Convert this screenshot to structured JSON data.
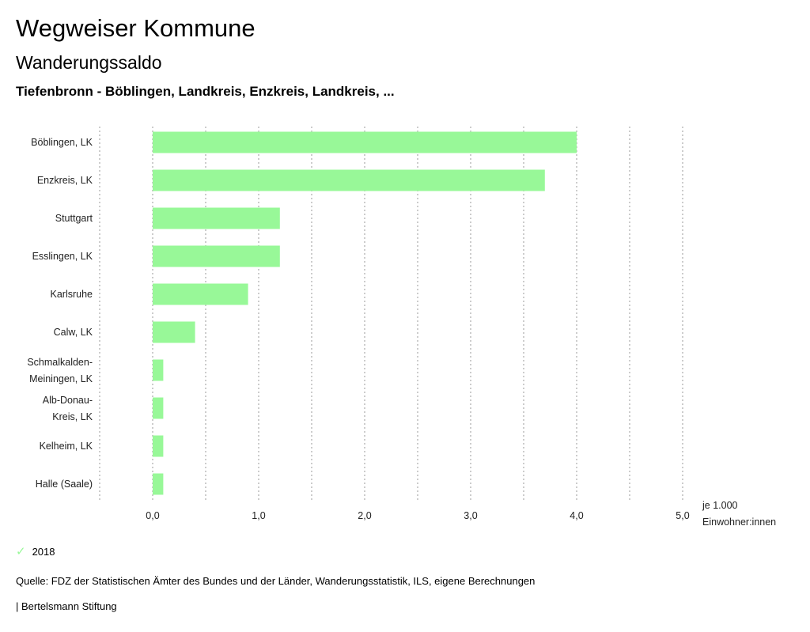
{
  "header": {
    "title": "Wegweiser Kommune",
    "subtitle": "Wanderungssaldo",
    "region": "Tiefenbronn - Böblingen, Landkreis, Enzkreis, Landkreis, ..."
  },
  "chart_data": {
    "type": "bar",
    "orientation": "horizontal",
    "categories": [
      [
        "Böblingen, LK"
      ],
      [
        "Enzkreis, LK"
      ],
      [
        "Stuttgart"
      ],
      [
        "Esslingen, LK"
      ],
      [
        "Karlsruhe"
      ],
      [
        "Calw, LK"
      ],
      [
        "Schmalkalden-",
        "Meiningen, LK"
      ],
      [
        "Alb-Donau-",
        "Kreis, LK"
      ],
      [
        "Kelheim, LK"
      ],
      [
        "Halle (Saale)"
      ]
    ],
    "series": [
      {
        "name": "2018",
        "values": [
          4.0,
          3.7,
          1.2,
          1.2,
          0.9,
          0.4,
          0.1,
          0.1,
          0.1,
          0.1
        ],
        "color": "#98f898"
      }
    ],
    "xlim": [
      -0.5,
      5.0
    ],
    "xticks": [
      0,
      1,
      2,
      3,
      4,
      5
    ],
    "xtick_labels": [
      "0,0",
      "1,0",
      "2,0",
      "3,0",
      "4,0",
      "5,0"
    ],
    "xlabel": [
      "je 1.000",
      "Einwohner:innen"
    ],
    "grid": true,
    "legend_position": "bottom-left"
  },
  "legend": {
    "label": "2018"
  },
  "footer": {
    "source": "Quelle: FDZ der Statistischen Ämter des Bundes und der Länder, Wanderungsstatistik, ILS, eigene Berechnungen",
    "org": "| Bertelsmann Stiftung"
  }
}
